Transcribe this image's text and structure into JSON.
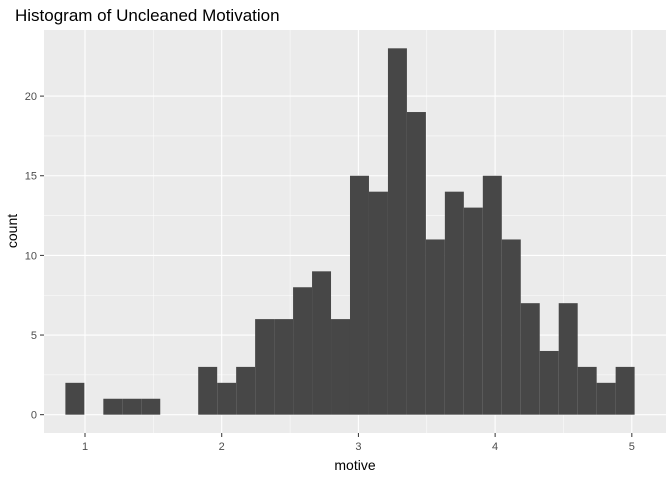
{
  "colors": {
    "panel": "#ebebeb",
    "grid_major": "#ffffff",
    "bar": "#474747",
    "tick": "#333333",
    "text": "#4d4d4d"
  },
  "chart_data": {
    "type": "bar",
    "title": "Histogram of Uncleaned Motivation",
    "xlabel": "motive",
    "ylabel": "count",
    "xlim": [
      0.7,
      5.25
    ],
    "ylim": [
      -1.15,
      24.15
    ],
    "x_ticks": [
      1,
      2,
      3,
      4,
      5
    ],
    "x_tick_labels": [
      "1",
      "2",
      "3",
      "4",
      "5"
    ],
    "y_ticks": [
      0,
      5,
      10,
      15,
      20
    ],
    "y_tick_labels": [
      "0",
      "5",
      "10",
      "15",
      "20"
    ],
    "grid": true,
    "bin_width": 0.1388,
    "bins": [
      {
        "start": 0.8564,
        "count": 2
      },
      {
        "start": 0.9952,
        "count": 0
      },
      {
        "start": 1.134,
        "count": 1
      },
      {
        "start": 1.2728,
        "count": 1
      },
      {
        "start": 1.4116,
        "count": 1
      },
      {
        "start": 1.5504,
        "count": 0
      },
      {
        "start": 1.6892,
        "count": 0
      },
      {
        "start": 1.828,
        "count": 3
      },
      {
        "start": 1.9668,
        "count": 2
      },
      {
        "start": 2.1056,
        "count": 3
      },
      {
        "start": 2.2444,
        "count": 6
      },
      {
        "start": 2.3832,
        "count": 6
      },
      {
        "start": 2.522,
        "count": 8
      },
      {
        "start": 2.6608,
        "count": 9
      },
      {
        "start": 2.7996,
        "count": 6
      },
      {
        "start": 2.9384,
        "count": 15
      },
      {
        "start": 3.0772,
        "count": 14
      },
      {
        "start": 3.216,
        "count": 23
      },
      {
        "start": 3.3548,
        "count": 19
      },
      {
        "start": 3.4936,
        "count": 11
      },
      {
        "start": 3.6324,
        "count": 14
      },
      {
        "start": 3.7712,
        "count": 13
      },
      {
        "start": 3.91,
        "count": 15
      },
      {
        "start": 4.0488,
        "count": 11
      },
      {
        "start": 4.1876,
        "count": 7
      },
      {
        "start": 4.3264,
        "count": 4
      },
      {
        "start": 4.4652,
        "count": 7
      },
      {
        "start": 4.604,
        "count": 3
      },
      {
        "start": 4.7428,
        "count": 2
      },
      {
        "start": 4.8816,
        "count": 3
      }
    ]
  }
}
